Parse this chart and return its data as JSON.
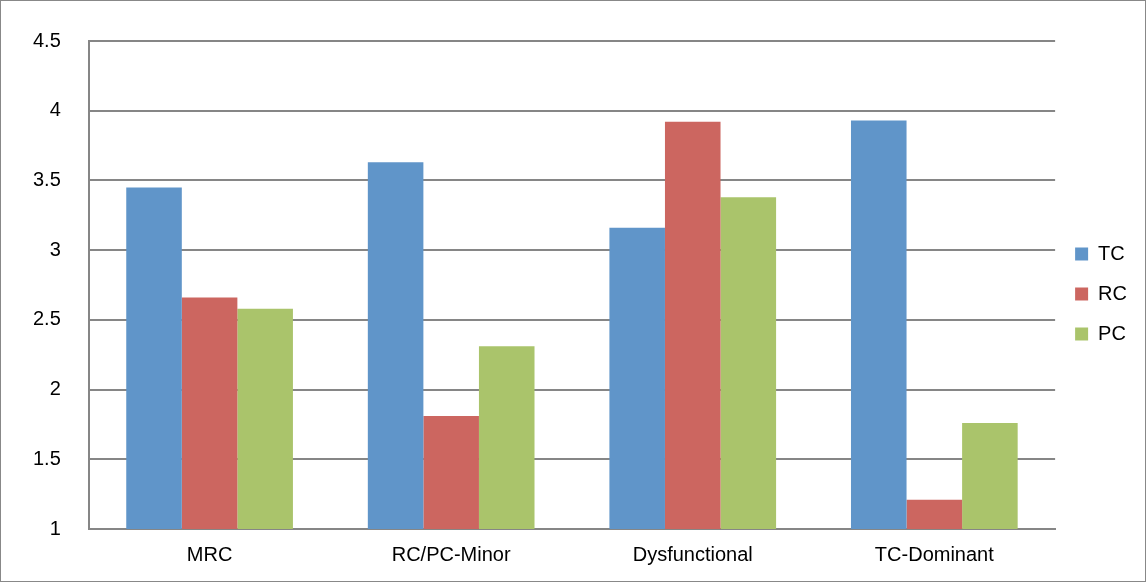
{
  "chart_data": {
    "type": "bar",
    "categories": [
      "MRC",
      "RC/PC-Minor",
      "Dysfunctional",
      "TC-Dominant"
    ],
    "series": [
      {
        "name": "TC",
        "color": "#6095c9",
        "values": [
          3.45,
          3.63,
          3.16,
          3.93
        ]
      },
      {
        "name": "RC",
        "color": "#cc6660",
        "values": [
          2.66,
          1.81,
          3.92,
          1.21
        ]
      },
      {
        "name": "PC",
        "color": "#aac46b",
        "values": [
          2.58,
          2.31,
          3.38,
          1.76
        ]
      }
    ],
    "ylim": [
      1,
      4.5
    ],
    "yticks": [
      1,
      1.5,
      2,
      2.5,
      3,
      3.5,
      4,
      4.5
    ],
    "grid": "y",
    "legend": "right"
  }
}
